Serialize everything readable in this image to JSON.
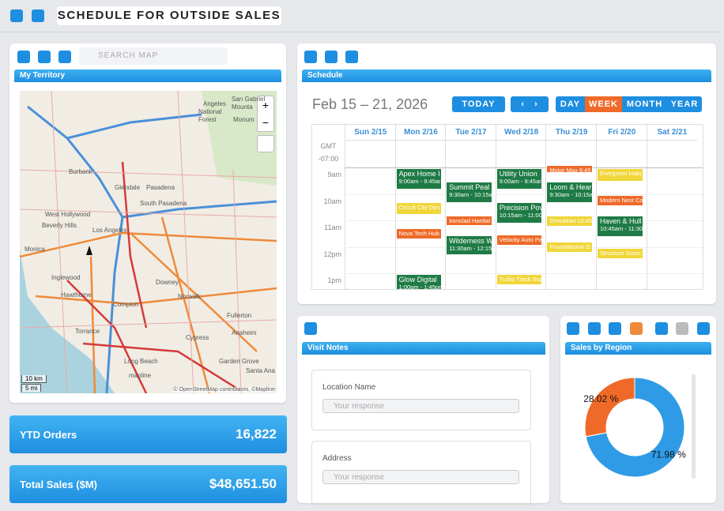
{
  "header": {
    "title": "SCHEDULE FOR OUTSIDE SALES"
  },
  "map_panel": {
    "search_placeholder": "SEARCH MAP",
    "title": "My Territory",
    "labels": [
      "San Gabriel",
      "Angeles",
      "National",
      "Forest",
      "Mounta",
      "Monum",
      "Burbank",
      "Glendale",
      "Pasadena",
      "South Pasadena",
      "West Hollywood",
      "Beverly Hills",
      "Los Angeles",
      "Monica",
      "Inglewood",
      "Hawthorne",
      "Downey",
      "Norwalk",
      "Compton",
      "Torrance",
      "Long Beach",
      "Cypress",
      "Fullerton",
      "Anaheim",
      "Garden Grove",
      "Santa Ana",
      "mapline"
    ],
    "scale": [
      "10 km",
      "5 mi"
    ],
    "attribution": "© OpenStreetMap contributors, ©Mapline"
  },
  "schedule": {
    "title": "Schedule",
    "date_range": "Feb 15 – 21, 2026",
    "today": "TODAY",
    "views": [
      "DAY",
      "WEEK",
      "MONTH",
      "YEAR"
    ],
    "timezone": [
      "GMT",
      "-07:00"
    ],
    "hours": [
      "9am",
      "10am",
      "11am",
      "12pm",
      "1pm"
    ],
    "days": [
      {
        "label": "Sun 2/15",
        "events": []
      },
      {
        "label": "Mon 2/16",
        "events": [
          {
            "title": "Apex Home I",
            "time": "9:00am - 9:45ar",
            "color": "green"
          },
          {
            "title": "Circuit City Dyn",
            "color": "yellow"
          },
          {
            "title": "Nova Tech Hub",
            "color": "orange"
          },
          {
            "title": "Glow Digital",
            "time": "1:00pm - 1:45pm",
            "color": "green"
          }
        ]
      },
      {
        "label": "Tue 2/17",
        "events": [
          {
            "title": "Summit Peal",
            "time": "9:30am - 10:15ar",
            "color": "green"
          },
          {
            "title": "Ironclad Hardwi",
            "color": "orange"
          },
          {
            "title": "Wilderness W",
            "time": "11:30am - 12:15pr",
            "color": "green"
          }
        ]
      },
      {
        "label": "Wed 2/18",
        "events": [
          {
            "title": "Utility Union",
            "time": "9:00am - 9:45ar",
            "color": "green"
          },
          {
            "title": "Precision Pov",
            "time": "10:15am - 11:00a",
            "color": "green"
          },
          {
            "title": "Velocity Auto Pa",
            "color": "orange"
          },
          {
            "title": "Turbo Track Sup",
            "color": "yellow"
          }
        ]
      },
      {
        "label": "Thu 2/19",
        "events": [
          {
            "title": "Motor Max 8:45",
            "color": "orange"
          },
          {
            "title": "Loom & Hear",
            "time": "9:30am - 10:15ar",
            "color": "green"
          },
          {
            "title": "OmniMart 10:45",
            "color": "yellow"
          },
          {
            "title": "Foundational G",
            "color": "yellow"
          }
        ]
      },
      {
        "label": "Fri 2/20",
        "events": [
          {
            "title": "Evergreen Habi",
            "color": "yellow"
          },
          {
            "title": "Modern Nest Co",
            "color": "orange"
          },
          {
            "title": "Haven & Hull",
            "time": "10:45am - 11:30a",
            "color": "green"
          },
          {
            "title": "Structure Sourc",
            "color": "yellow"
          }
        ]
      },
      {
        "label": "Sat 2/21",
        "events": []
      }
    ]
  },
  "visit_notes": {
    "title": "Visit Notes",
    "fields": [
      {
        "label": "Location Name",
        "placeholder": "Your response"
      },
      {
        "label": "Address",
        "placeholder": "Your response"
      }
    ]
  },
  "kpis": [
    {
      "label": "YTD Orders",
      "value": "16,822"
    },
    {
      "label": "Total Sales ($M)",
      "value": "$48,651.50"
    }
  ],
  "chart_data": {
    "type": "pie",
    "title": "Sales by Region",
    "values": [
      71.98,
      28.02
    ],
    "value_labels": [
      "71.98 %",
      "28.02 %"
    ],
    "colors": [
      "#2f9be6",
      "#ef6a28"
    ],
    "donut": true
  }
}
